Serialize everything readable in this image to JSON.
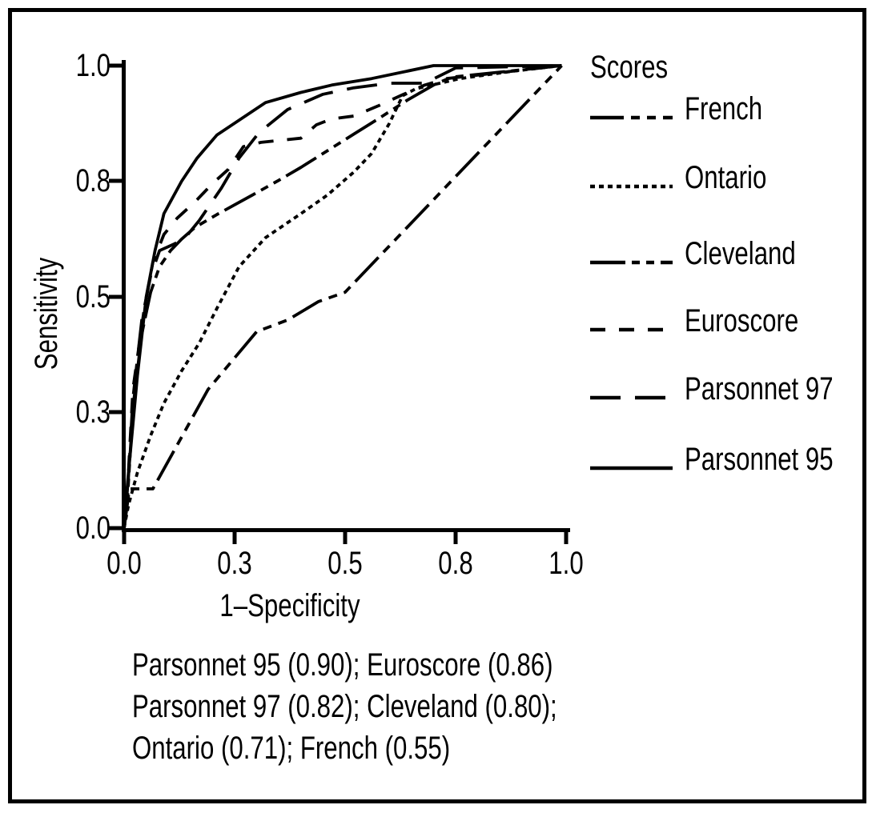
{
  "legend": {
    "title": "Scores",
    "items": [
      {
        "label": "French",
        "series": "french"
      },
      {
        "label": "Ontario",
        "series": "ontario"
      },
      {
        "label": "Cleveland",
        "series": "cleveland"
      },
      {
        "label": "Euroscore",
        "series": "euroscore"
      },
      {
        "label": "Parsonnet 97",
        "series": "parsonnet97"
      },
      {
        "label": "Parsonnet 95",
        "series": "parsonnet95"
      }
    ]
  },
  "annotation": {
    "lines": [
      "Parsonnet 95 (0.90); Euroscore (0.86)",
      "Parsonnet 97 (0.82); Cleveland (0.80);",
      "Ontario (0.71); French (0.55)"
    ]
  },
  "chart_data": {
    "type": "line",
    "subtype": "ROC curves",
    "title": "",
    "x_label": "1–Specificity",
    "y_label": "Sensitivity",
    "x_range": [
      0,
      1
    ],
    "y_range": [
      0,
      1
    ],
    "x_tick_labels": [
      "0.0",
      "0.3",
      "0.5",
      "0.8",
      "1.0"
    ],
    "y_tick_labels_top_to_bottom": [
      "1.0",
      "0.8",
      "0.5",
      "0.3",
      "0.0"
    ],
    "grid": false,
    "legend_position": "right",
    "background": "#ffffff",
    "line_color": "#000000",
    "series": [
      {
        "id": "french",
        "name": "French",
        "auc": 0.55,
        "dash": [
          42,
          9,
          11,
          9,
          11,
          9
        ],
        "points": [
          [
            0,
            0
          ],
          [
            0.012,
            0.085
          ],
          [
            0.065,
            0.085
          ],
          [
            0.19,
            0.3
          ],
          [
            0.3,
            0.425
          ],
          [
            0.37,
            0.45
          ],
          [
            0.44,
            0.49
          ],
          [
            0.5,
            0.51
          ],
          [
            0.99,
            1.0
          ]
        ]
      },
      {
        "id": "ontario",
        "name": "Ontario",
        "auc": 0.71,
        "dash": [
          6,
          5
        ],
        "points": [
          [
            0,
            0
          ],
          [
            0.01,
            0.05
          ],
          [
            0.03,
            0.12
          ],
          [
            0.06,
            0.2
          ],
          [
            0.09,
            0.27
          ],
          [
            0.13,
            0.34
          ],
          [
            0.17,
            0.4
          ],
          [
            0.21,
            0.475
          ],
          [
            0.26,
            0.565
          ],
          [
            0.32,
            0.628
          ],
          [
            0.4,
            0.68
          ],
          [
            0.46,
            0.72
          ],
          [
            0.52,
            0.77
          ],
          [
            0.56,
            0.81
          ],
          [
            0.6,
            0.875
          ],
          [
            0.63,
            0.935
          ],
          [
            0.66,
            0.95
          ],
          [
            0.76,
            0.972
          ],
          [
            0.88,
            0.988
          ],
          [
            0.99,
            1.0
          ]
        ]
      },
      {
        "id": "cleveland",
        "name": "Cleveland",
        "auc": 0.8,
        "dash": [
          44,
          8,
          10,
          8,
          10,
          8
        ],
        "points": [
          [
            0,
            0
          ],
          [
            0.008,
            0.07
          ],
          [
            0.02,
            0.26
          ],
          [
            0.04,
            0.42
          ],
          [
            0.06,
            0.51
          ],
          [
            0.08,
            0.565
          ],
          [
            0.105,
            0.6
          ],
          [
            0.13,
            0.625
          ],
          [
            0.16,
            0.65
          ],
          [
            0.21,
            0.678
          ],
          [
            0.29,
            0.72
          ],
          [
            0.35,
            0.752
          ],
          [
            0.4,
            0.78
          ],
          [
            0.47,
            0.822
          ],
          [
            0.52,
            0.852
          ],
          [
            0.58,
            0.888
          ],
          [
            0.64,
            0.925
          ],
          [
            0.7,
            0.958
          ],
          [
            0.74,
            0.975
          ],
          [
            0.99,
            1.0
          ]
        ]
      },
      {
        "id": "euroscore",
        "name": "Euroscore",
        "auc": 0.86,
        "dash": [
          19,
          17
        ],
        "points": [
          [
            0,
            0
          ],
          [
            0.008,
            0.09
          ],
          [
            0.02,
            0.3
          ],
          [
            0.045,
            0.47
          ],
          [
            0.065,
            0.575
          ],
          [
            0.09,
            0.635
          ],
          [
            0.12,
            0.67
          ],
          [
            0.16,
            0.705
          ],
          [
            0.2,
            0.745
          ],
          [
            0.235,
            0.775
          ],
          [
            0.27,
            0.825
          ],
          [
            0.31,
            0.834
          ],
          [
            0.4,
            0.843
          ],
          [
            0.435,
            0.872
          ],
          [
            0.47,
            0.885
          ],
          [
            0.52,
            0.891
          ],
          [
            0.575,
            0.913
          ],
          [
            0.63,
            0.937
          ],
          [
            0.68,
            0.958
          ],
          [
            0.73,
            0.972
          ],
          [
            0.99,
            1.0
          ]
        ]
      },
      {
        "id": "parsonnet97",
        "name": "Parsonnet 97",
        "auc": 0.82,
        "dash": [
          38,
          18
        ],
        "points": [
          [
            0,
            0
          ],
          [
            0.008,
            0.08
          ],
          [
            0.02,
            0.28
          ],
          [
            0.04,
            0.45
          ],
          [
            0.06,
            0.545
          ],
          [
            0.08,
            0.6
          ],
          [
            0.115,
            0.615
          ],
          [
            0.14,
            0.63
          ],
          [
            0.17,
            0.665
          ],
          [
            0.22,
            0.735
          ],
          [
            0.26,
            0.8
          ],
          [
            0.305,
            0.855
          ],
          [
            0.37,
            0.905
          ],
          [
            0.45,
            0.938
          ],
          [
            0.52,
            0.952
          ],
          [
            0.6,
            0.962
          ],
          [
            0.68,
            0.962
          ],
          [
            0.75,
            0.995
          ],
          [
            0.99,
            1.0
          ]
        ]
      },
      {
        "id": "parsonnet95",
        "name": "Parsonnet 95",
        "auc": 0.9,
        "dash": [],
        "points": [
          [
            0,
            0
          ],
          [
            0.008,
            0.1
          ],
          [
            0.03,
            0.33
          ],
          [
            0.05,
            0.5
          ],
          [
            0.07,
            0.6
          ],
          [
            0.09,
            0.68
          ],
          [
            0.13,
            0.75
          ],
          [
            0.165,
            0.8
          ],
          [
            0.21,
            0.85
          ],
          [
            0.32,
            0.92
          ],
          [
            0.4,
            0.942
          ],
          [
            0.47,
            0.958
          ],
          [
            0.56,
            0.972
          ],
          [
            0.7,
            1.0
          ],
          [
            0.99,
            1.0
          ]
        ]
      }
    ]
  }
}
